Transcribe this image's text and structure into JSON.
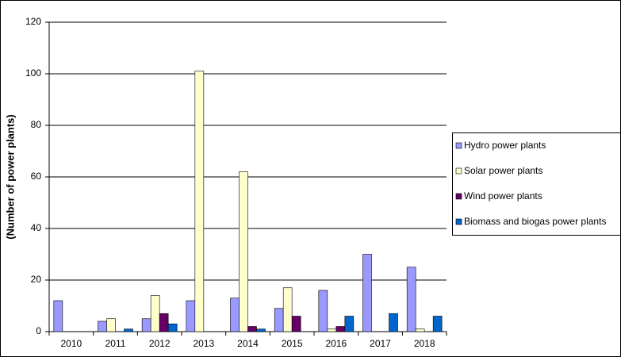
{
  "chart_data": {
    "type": "bar",
    "y_label": "(Number of power plants)",
    "categories": [
      "2010",
      "2011",
      "2012",
      "2013",
      "2014",
      "2015",
      "2016",
      "2017",
      "2018"
    ],
    "series": [
      {
        "name": "Hydro power plants",
        "color": "#9999ff",
        "values": [
          12,
          4,
          5,
          12,
          13,
          9,
          16,
          30,
          25
        ]
      },
      {
        "name": "Solar power plants",
        "color": "#ffffcc",
        "values": [
          0,
          5,
          14,
          101,
          62,
          17,
          1,
          0,
          1
        ]
      },
      {
        "name": "Wind power plants",
        "color": "#660066",
        "values": [
          0,
          0,
          7,
          0,
          2,
          6,
          2,
          0,
          0
        ]
      },
      {
        "name": "Biomass and biogas power plants",
        "color": "#0066cc",
        "values": [
          0,
          1,
          3,
          0,
          1,
          0,
          6,
          7,
          6
        ]
      }
    ],
    "ylim": [
      0,
      120
    ],
    "yticks": [
      0,
      20,
      40,
      60,
      80,
      100,
      120
    ],
    "grid": true,
    "legend": "right"
  }
}
